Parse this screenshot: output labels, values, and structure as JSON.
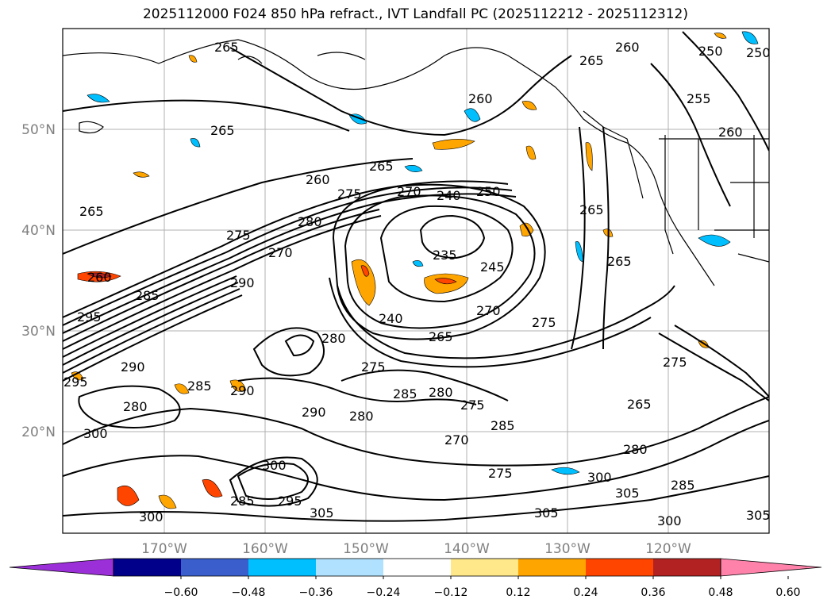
{
  "title": "2025112000 F024 850 hPa refract., IVT Landfall PC (2025112212 - 2025112312)",
  "lat_labels": [
    "50°N",
    "40°N",
    "30°N",
    "20°N"
  ],
  "lon_labels": [
    "170°W",
    "160°W",
    "150°W",
    "140°W",
    "130°W",
    "120°W"
  ],
  "colorbar": {
    "colors": [
      "#9b30d9",
      "#00008b",
      "#3a5fcd",
      "#00bfff",
      "#b0e2ff",
      "#ffffff",
      "#ffe88a",
      "#ffa500",
      "#ff4500",
      "#b22222",
      "#ff82ab"
    ],
    "ticks": [
      "−0.60",
      "−0.48",
      "−0.36",
      "−0.24",
      "−0.12",
      "0.12",
      "0.24",
      "0.36",
      "0.48",
      "0.60"
    ]
  },
  "contour_labels": [
    "265",
    "260",
    "265",
    "250",
    "250",
    "255",
    "260",
    "265",
    "260",
    "265",
    "265",
    "260",
    "275",
    "270",
    "240",
    "250",
    "265",
    "280",
    "275",
    "270",
    "235",
    "245",
    "265",
    "260",
    "285",
    "290",
    "295",
    "240",
    "270",
    "275",
    "265",
    "280",
    "275",
    "285",
    "280",
    "275",
    "290",
    "295",
    "280",
    "285",
    "285",
    "290",
    "300",
    "290",
    "280",
    "270",
    "300",
    "275",
    "285",
    "280",
    "300",
    "285",
    "295",
    "305",
    "300",
    "305",
    "300",
    "305",
    "305",
    "275",
    "265"
  ]
}
